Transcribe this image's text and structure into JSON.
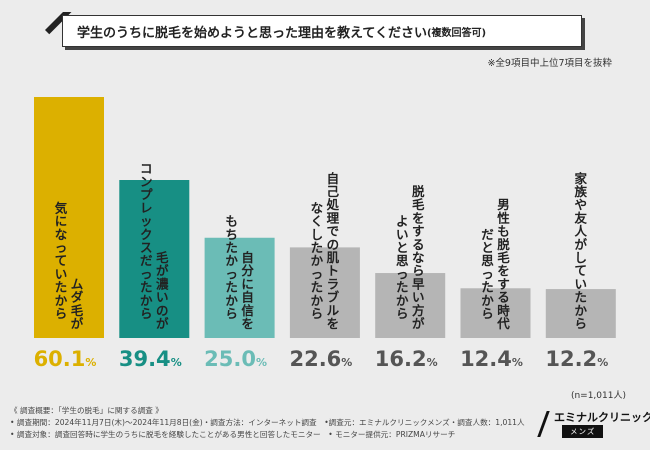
{
  "title": {
    "text": "学生のうちに脱毛を始めようと思った理由を教えてください",
    "note": "(複数回答可)"
  },
  "subnote": "※全9項目中上位7項目を抜粋",
  "sample_size": "(n=1,011人)",
  "footer": {
    "line1": "《 調査概要：「学生の脱毛」に関する調査 》",
    "line2": "• 調査期間：2024年11月7日(木)～2024年11月8日(金)・調査方法：インターネット調査　•調査元：エミナルクリニックメンズ・調査人数：1,011人",
    "line3": "• 調査対象：調査回答時に学生のうちに脱毛を経験したことがある男性と回答したモニター　• モニター提供元：PRIZMAリサーチ"
  },
  "logo": {
    "name": "エミナルクリニック",
    "sub": "メンズ"
  },
  "colors": {
    "bar1": "#dcb000",
    "bar2": "#178f84",
    "bar3": "#6bbcb6",
    "bar_rest": "#b5b5b5",
    "label_dark": "#222222",
    "label_light": "#ffffff",
    "pct1": "#dcb000",
    "pct2": "#178f84",
    "pct3": "#6bbcb6",
    "pct_rest": "#555555"
  },
  "chart_data": {
    "type": "bar",
    "title": "学生のうちに脱毛を始めようと思った理由を教えてください",
    "unit": "%",
    "ylim": [
      0,
      60.1
    ],
    "categories": [
      [
        "ムダ毛が",
        "気になっていたから"
      ],
      [
        "毛が濃いのが",
        "コンプレックスだったから"
      ],
      [
        "自分に自信を",
        "もちたかったから"
      ],
      [
        "自己処理での肌トラブルを",
        "なくしたかったから"
      ],
      [
        "脱毛をするなら早い方が",
        "よいと思ったから"
      ],
      [
        "男性も脱毛をする時代",
        "だと思ったから"
      ],
      [
        "家族や友人がしていたから"
      ]
    ],
    "values": [
      60.1,
      39.4,
      25.0,
      22.6,
      16.2,
      12.4,
      12.2
    ],
    "value_labels": [
      "60.1",
      "39.4",
      "25.0",
      "22.6",
      "16.2",
      "12.4",
      "12.2"
    ],
    "percent_sign": "%"
  }
}
